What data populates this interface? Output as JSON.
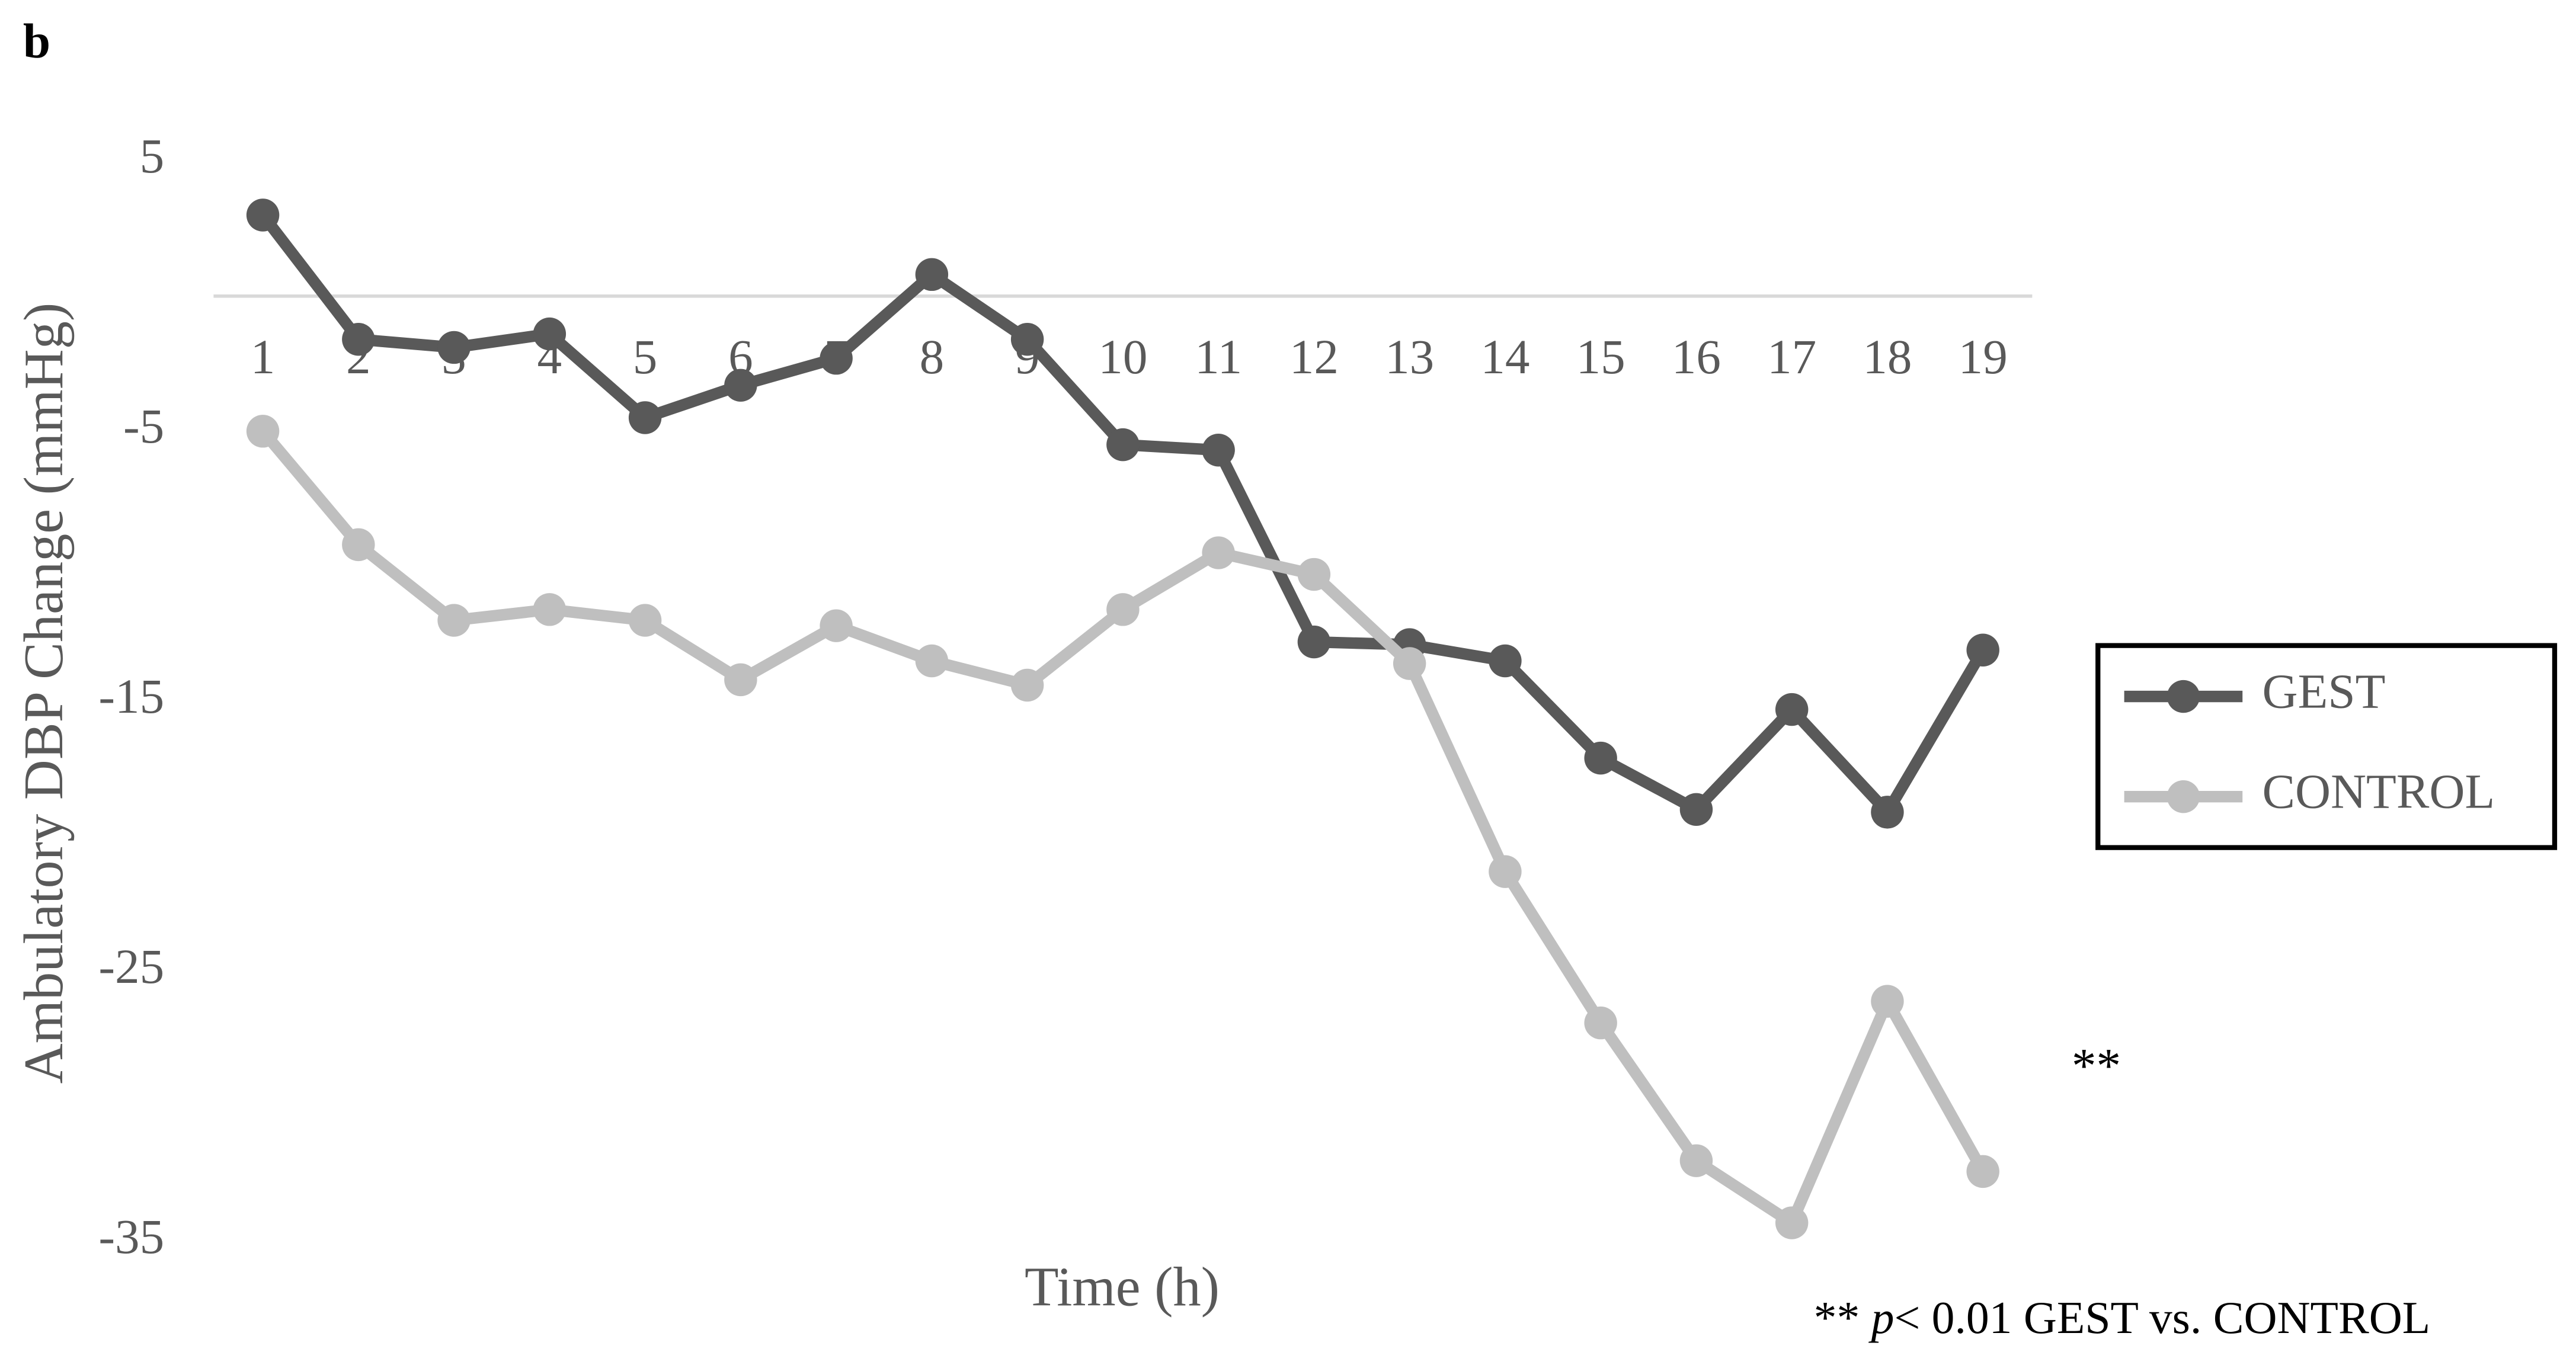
{
  "chart_data": {
    "type": "line",
    "panel_label": "b",
    "y_label": "Ambulatory DBP Change (mmHg)",
    "x_label": "Time (h)",
    "categories": [
      "1",
      "2",
      "3",
      "4",
      "5",
      "6",
      "7",
      "8",
      "9",
      "10",
      "11",
      "12",
      "13",
      "14",
      "15",
      "16",
      "17",
      "18",
      "19"
    ],
    "series": [
      {
        "name": "GEST",
        "color": "#595959",
        "values": [
          3.0,
          -1.6,
          -1.9,
          -1.4,
          -4.5,
          -3.3,
          -2.3,
          0.8,
          -1.6,
          -5.5,
          -5.7,
          -12.8,
          -12.9,
          -13.5,
          -17.1,
          -19.0,
          -15.3,
          -19.1,
          -13.1
        ]
      },
      {
        "name": "CONTROL",
        "color": "#bfbfbf",
        "values": [
          -5.0,
          -9.2,
          -12.0,
          -11.6,
          -12.0,
          -14.2,
          -12.2,
          -13.5,
          -14.4,
          -11.6,
          -9.5,
          -10.3,
          -13.6,
          -21.3,
          -26.9,
          -32.0,
          -34.3,
          -26.1,
          -32.4
        ]
      }
    ],
    "ylim": [
      -35,
      5
    ],
    "yticks": [
      5,
      -5,
      -15,
      -25,
      -35
    ],
    "grid": false,
    "legend": "right",
    "annotation": "**",
    "footnote": [
      "**",
      "p",
      "< 0.01 GEST vs. CONTROL"
    ]
  }
}
